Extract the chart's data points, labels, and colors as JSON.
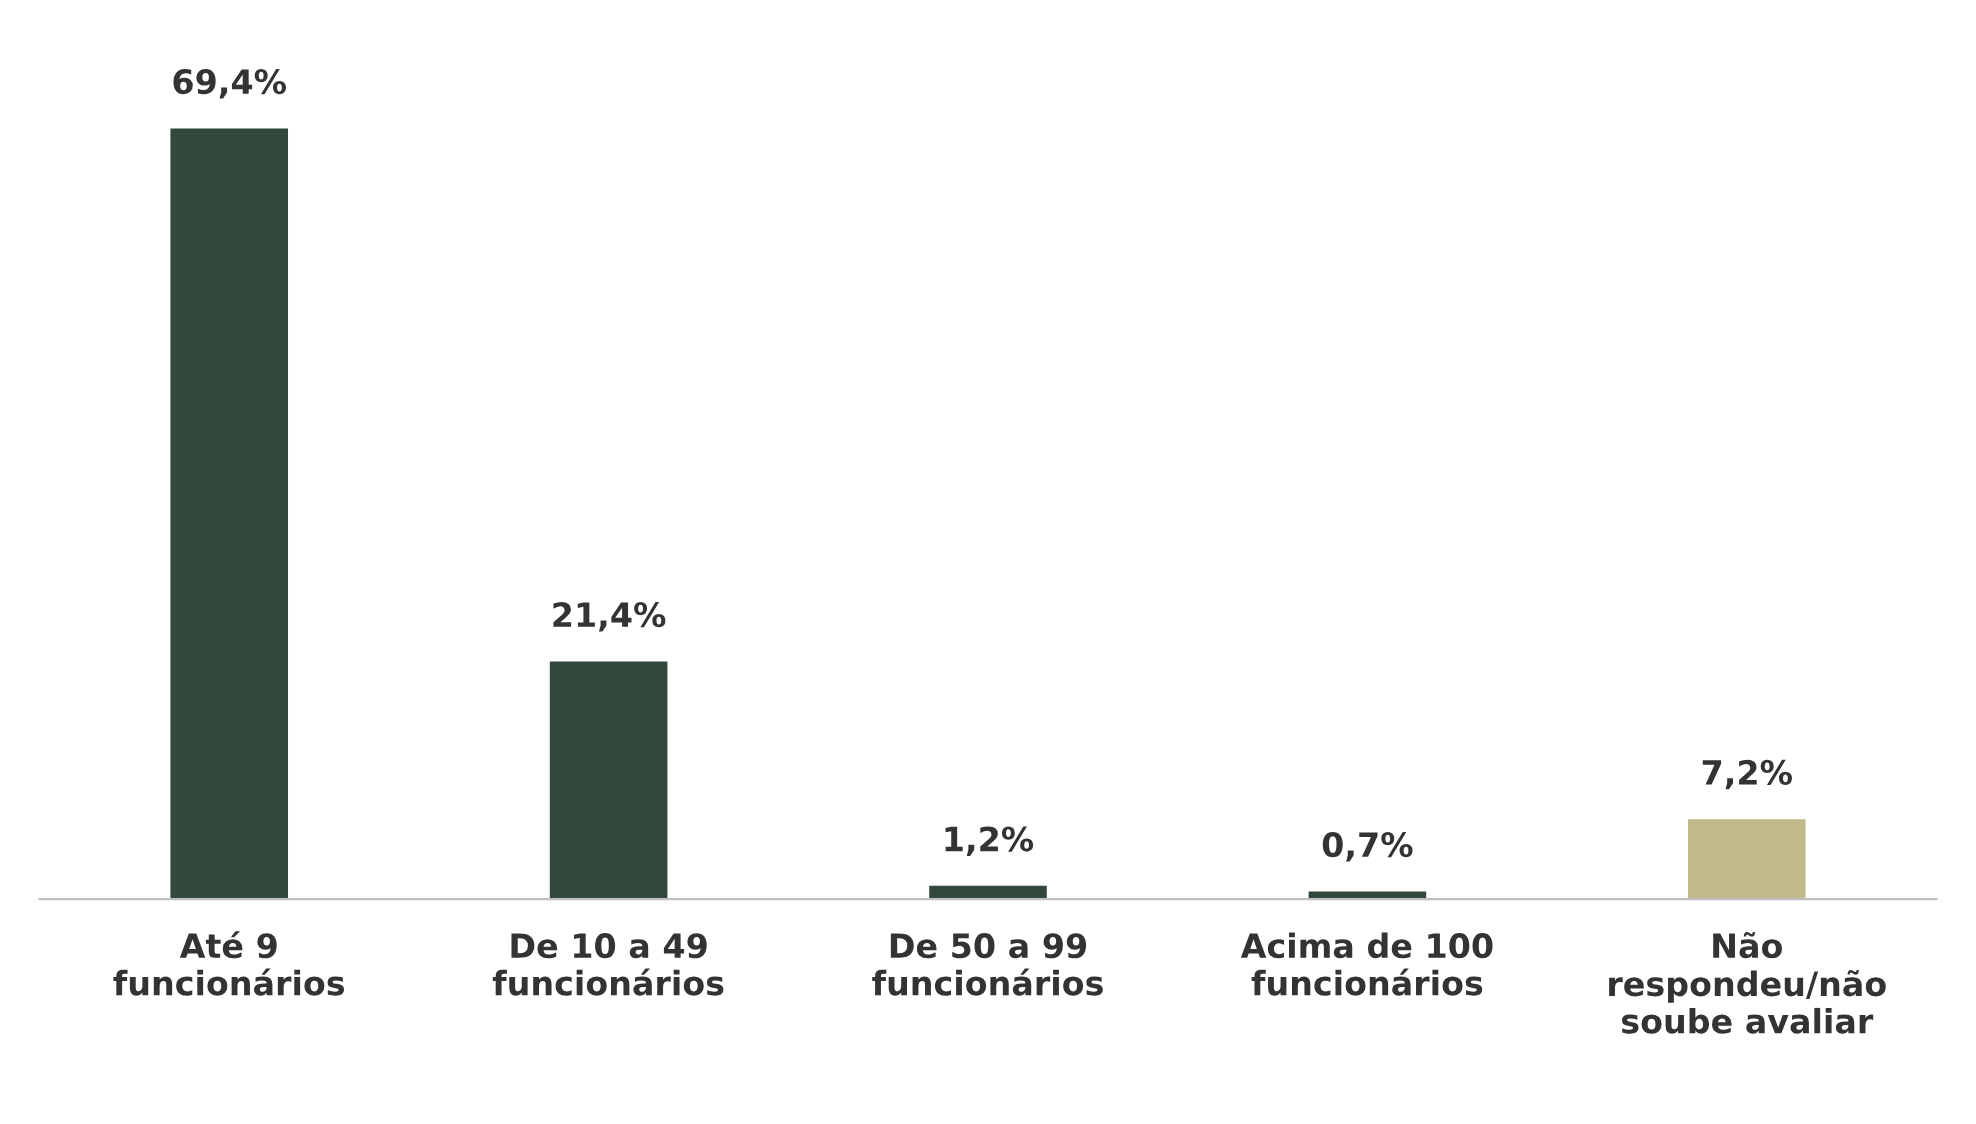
{
  "chart_data": {
    "type": "bar",
    "categories": [
      "Até 9\nfuncionários",
      "De 10 a 49\nfuncionários",
      "De 50 a 99\nfuncionários",
      "Acima de 100\nfuncionários",
      "Não\nrespondeu/não\nsoube avaliar"
    ],
    "values": [
      69.4,
      21.4,
      1.2,
      0.7,
      7.2
    ],
    "value_labels": [
      "69,4%",
      "21,4%",
      "1,2%",
      "0,7%",
      "7,2%"
    ],
    "colors": [
      "#33493b",
      "#33493b",
      "#33493b",
      "#33493b",
      "#bfb98b"
    ],
    "tick_labels": "x",
    "grid": false,
    "legend": false
  }
}
